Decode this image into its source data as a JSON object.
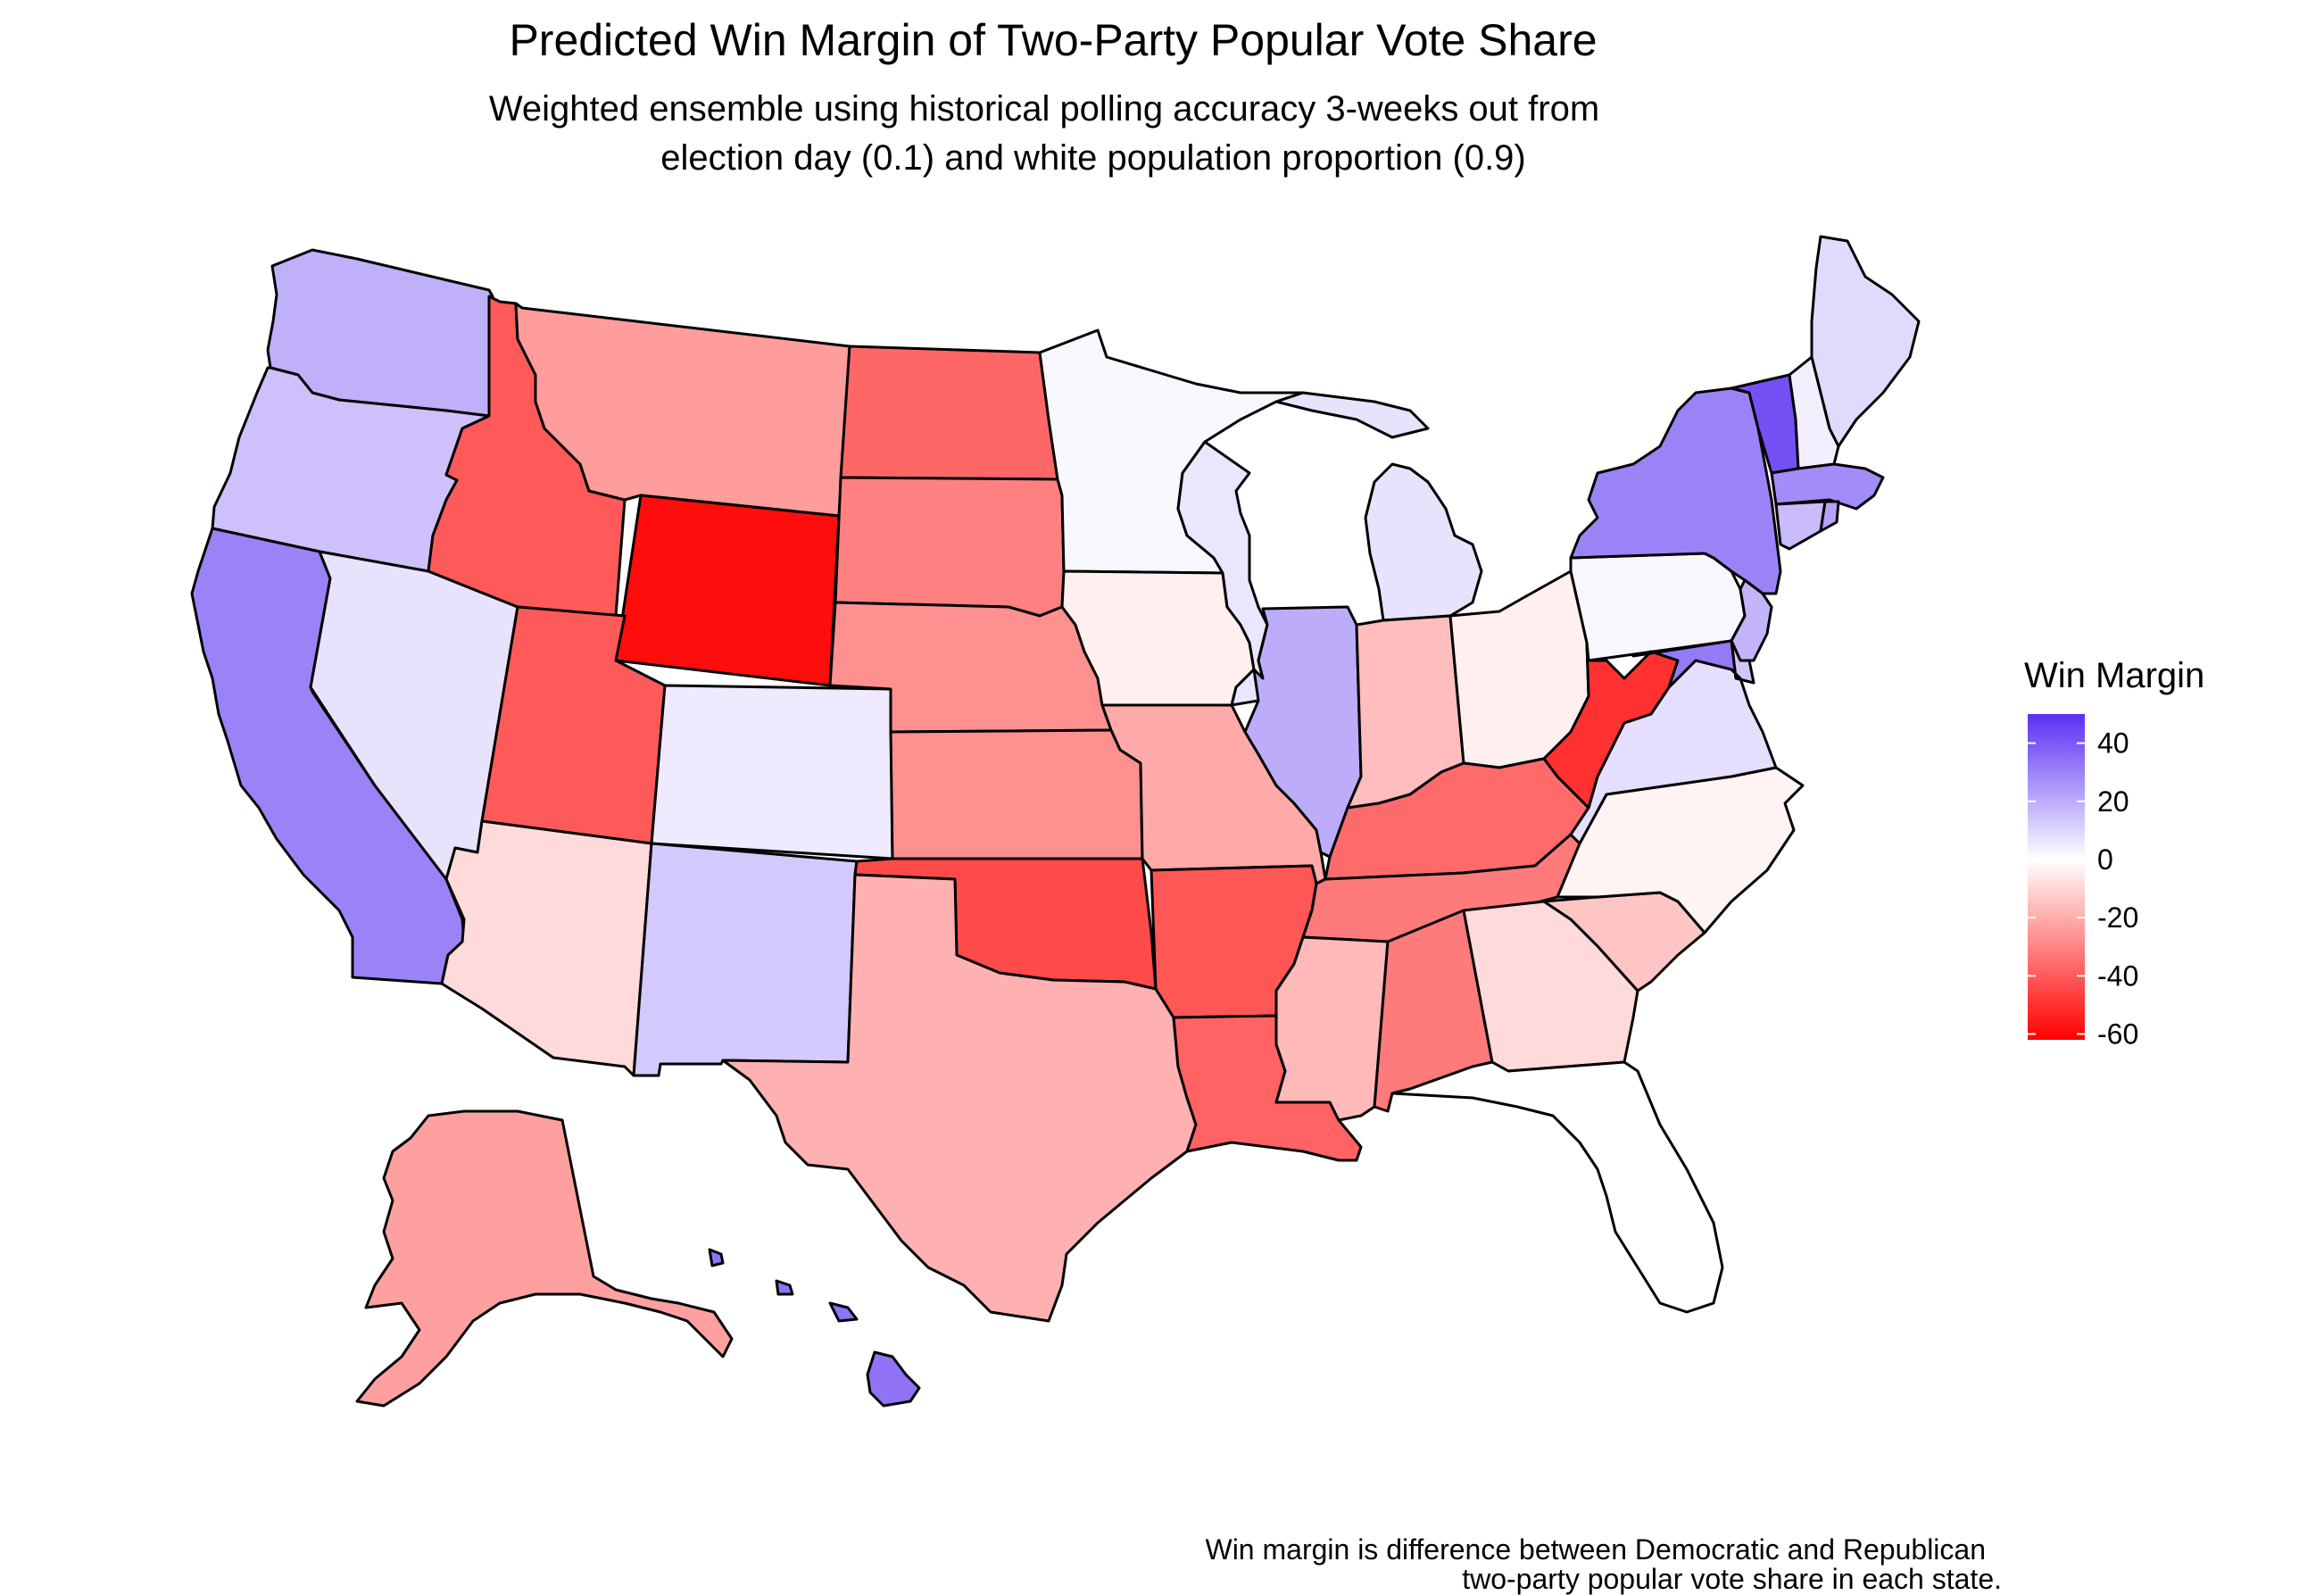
{
  "title": "Predicted Win Margin of Two-Party Popular Vote Share",
  "subtitle_line1": "Weighted ensemble using historical polling accuracy 3-weeks out from",
  "subtitle_line2": "election day (0.1) and white population proportion (0.9)",
  "caption_line1": "Win margin is difference between Democratic and Republican",
  "caption_line2": "two-party popular vote share in each state.",
  "legend": {
    "title": "Win Margin",
    "ticks": [
      {
        "value": 40,
        "label": "40"
      },
      {
        "value": 20,
        "label": "20"
      },
      {
        "value": 0,
        "label": "0"
      },
      {
        "value": -20,
        "label": "-20"
      },
      {
        "value": -40,
        "label": "-40"
      },
      {
        "value": -60,
        "label": "-60"
      }
    ],
    "range": [
      -62,
      50
    ],
    "colors": {
      "low": "#ff0000",
      "mid": "#ffffff",
      "high": "#5a2ff2"
    }
  },
  "states": [
    {
      "id": "WA",
      "margin": 19
    },
    {
      "id": "OR",
      "margin": 15
    },
    {
      "id": "CA",
      "margin": 30
    },
    {
      "id": "NV",
      "margin": 7
    },
    {
      "id": "ID",
      "margin": -40
    },
    {
      "id": "MT",
      "margin": -24
    },
    {
      "id": "WY",
      "margin": -59
    },
    {
      "id": "UT",
      "margin": -40
    },
    {
      "id": "AZ",
      "margin": -9
    },
    {
      "id": "CO",
      "margin": 5
    },
    {
      "id": "NM",
      "margin": 13
    },
    {
      "id": "ND",
      "margin": -37
    },
    {
      "id": "SD",
      "margin": -31
    },
    {
      "id": "NE",
      "margin": -27
    },
    {
      "id": "KS",
      "margin": -27
    },
    {
      "id": "OK",
      "margin": -44
    },
    {
      "id": "TX",
      "margin": -19
    },
    {
      "id": "MN",
      "margin": 2
    },
    {
      "id": "IA",
      "margin": -4
    },
    {
      "id": "MO",
      "margin": -21
    },
    {
      "id": "AR",
      "margin": -41
    },
    {
      "id": "LA",
      "margin": -38
    },
    {
      "id": "WI",
      "margin": 6
    },
    {
      "id": "IL",
      "margin": 20
    },
    {
      "id": "MI",
      "margin": 7
    },
    {
      "id": "IN",
      "margin": -16
    },
    {
      "id": "OH",
      "margin": -4
    },
    {
      "id": "KY",
      "margin": -36
    },
    {
      "id": "TN",
      "margin": -32
    },
    {
      "id": "MS",
      "margin": -17
    },
    {
      "id": "AL",
      "margin": -32
    },
    {
      "id": "GA",
      "margin": -9
    },
    {
      "id": "FL",
      "margin": 0
    },
    {
      "id": "SC",
      "margin": -14
    },
    {
      "id": "NC",
      "margin": -3
    },
    {
      "id": "VA",
      "margin": 8
    },
    {
      "id": "WV",
      "margin": -50
    },
    {
      "id": "PA",
      "margin": 2
    },
    {
      "id": "NY",
      "margin": 30
    },
    {
      "id": "VT",
      "margin": 42
    },
    {
      "id": "NH",
      "margin": 4
    },
    {
      "id": "ME",
      "margin": 9
    },
    {
      "id": "MA",
      "margin": 28
    },
    {
      "id": "CT",
      "margin": 16
    },
    {
      "id": "RI",
      "margin": 22
    },
    {
      "id": "NJ",
      "margin": 18
    },
    {
      "id": "DE",
      "margin": 14
    },
    {
      "id": "MD",
      "margin": 32
    },
    {
      "id": "AK",
      "margin": -23
    },
    {
      "id": "HI",
      "margin": 34
    }
  ]
}
